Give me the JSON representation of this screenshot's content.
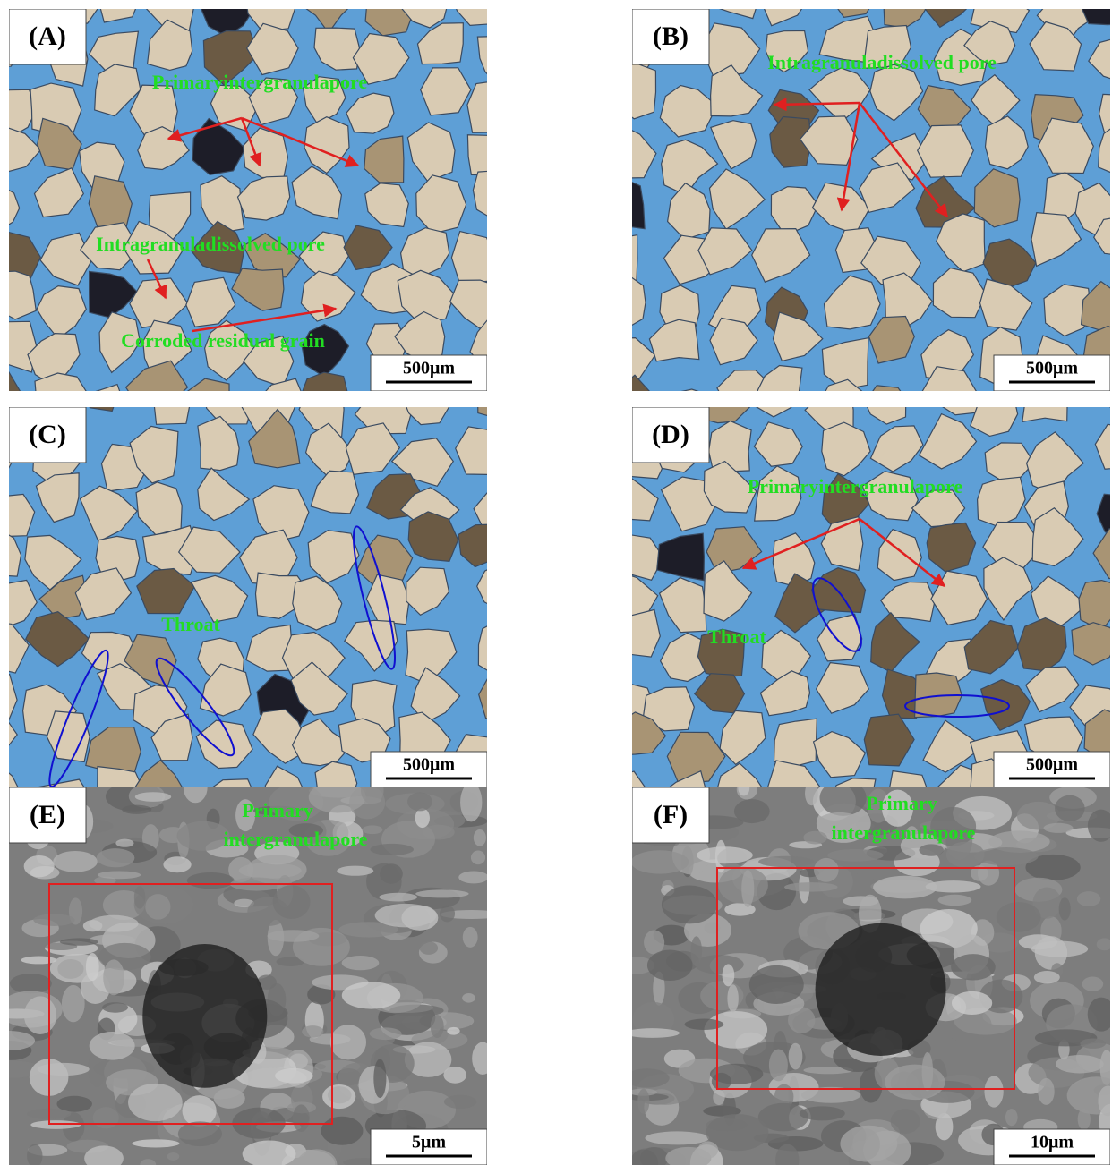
{
  "panels": [
    {
      "label": "(A)",
      "annotations": [
        "Primaryintergranulapore",
        "Intragranuladissolved pore",
        "Corroded residual grain"
      ],
      "scale_bar": "500μm"
    },
    {
      "label": "(B)",
      "annotations": [
        "Intragranuladissolved pore"
      ],
      "scale_bar": "500μm"
    },
    {
      "label": "(C)",
      "annotations": [
        "Throat"
      ],
      "scale_bar": "500μm"
    },
    {
      "label": "(D)",
      "annotations": [
        "Primaryintergranulapore",
        "Throat"
      ],
      "scale_bar": "500μm"
    },
    {
      "label": "(E)",
      "annotations": [
        "Primary",
        "intergranulapore"
      ],
      "scale_bar": "5μm"
    },
    {
      "label": "(F)",
      "annotations": [
        "Primary",
        "intergranulapore"
      ],
      "scale_bar": "10μm"
    }
  ]
}
